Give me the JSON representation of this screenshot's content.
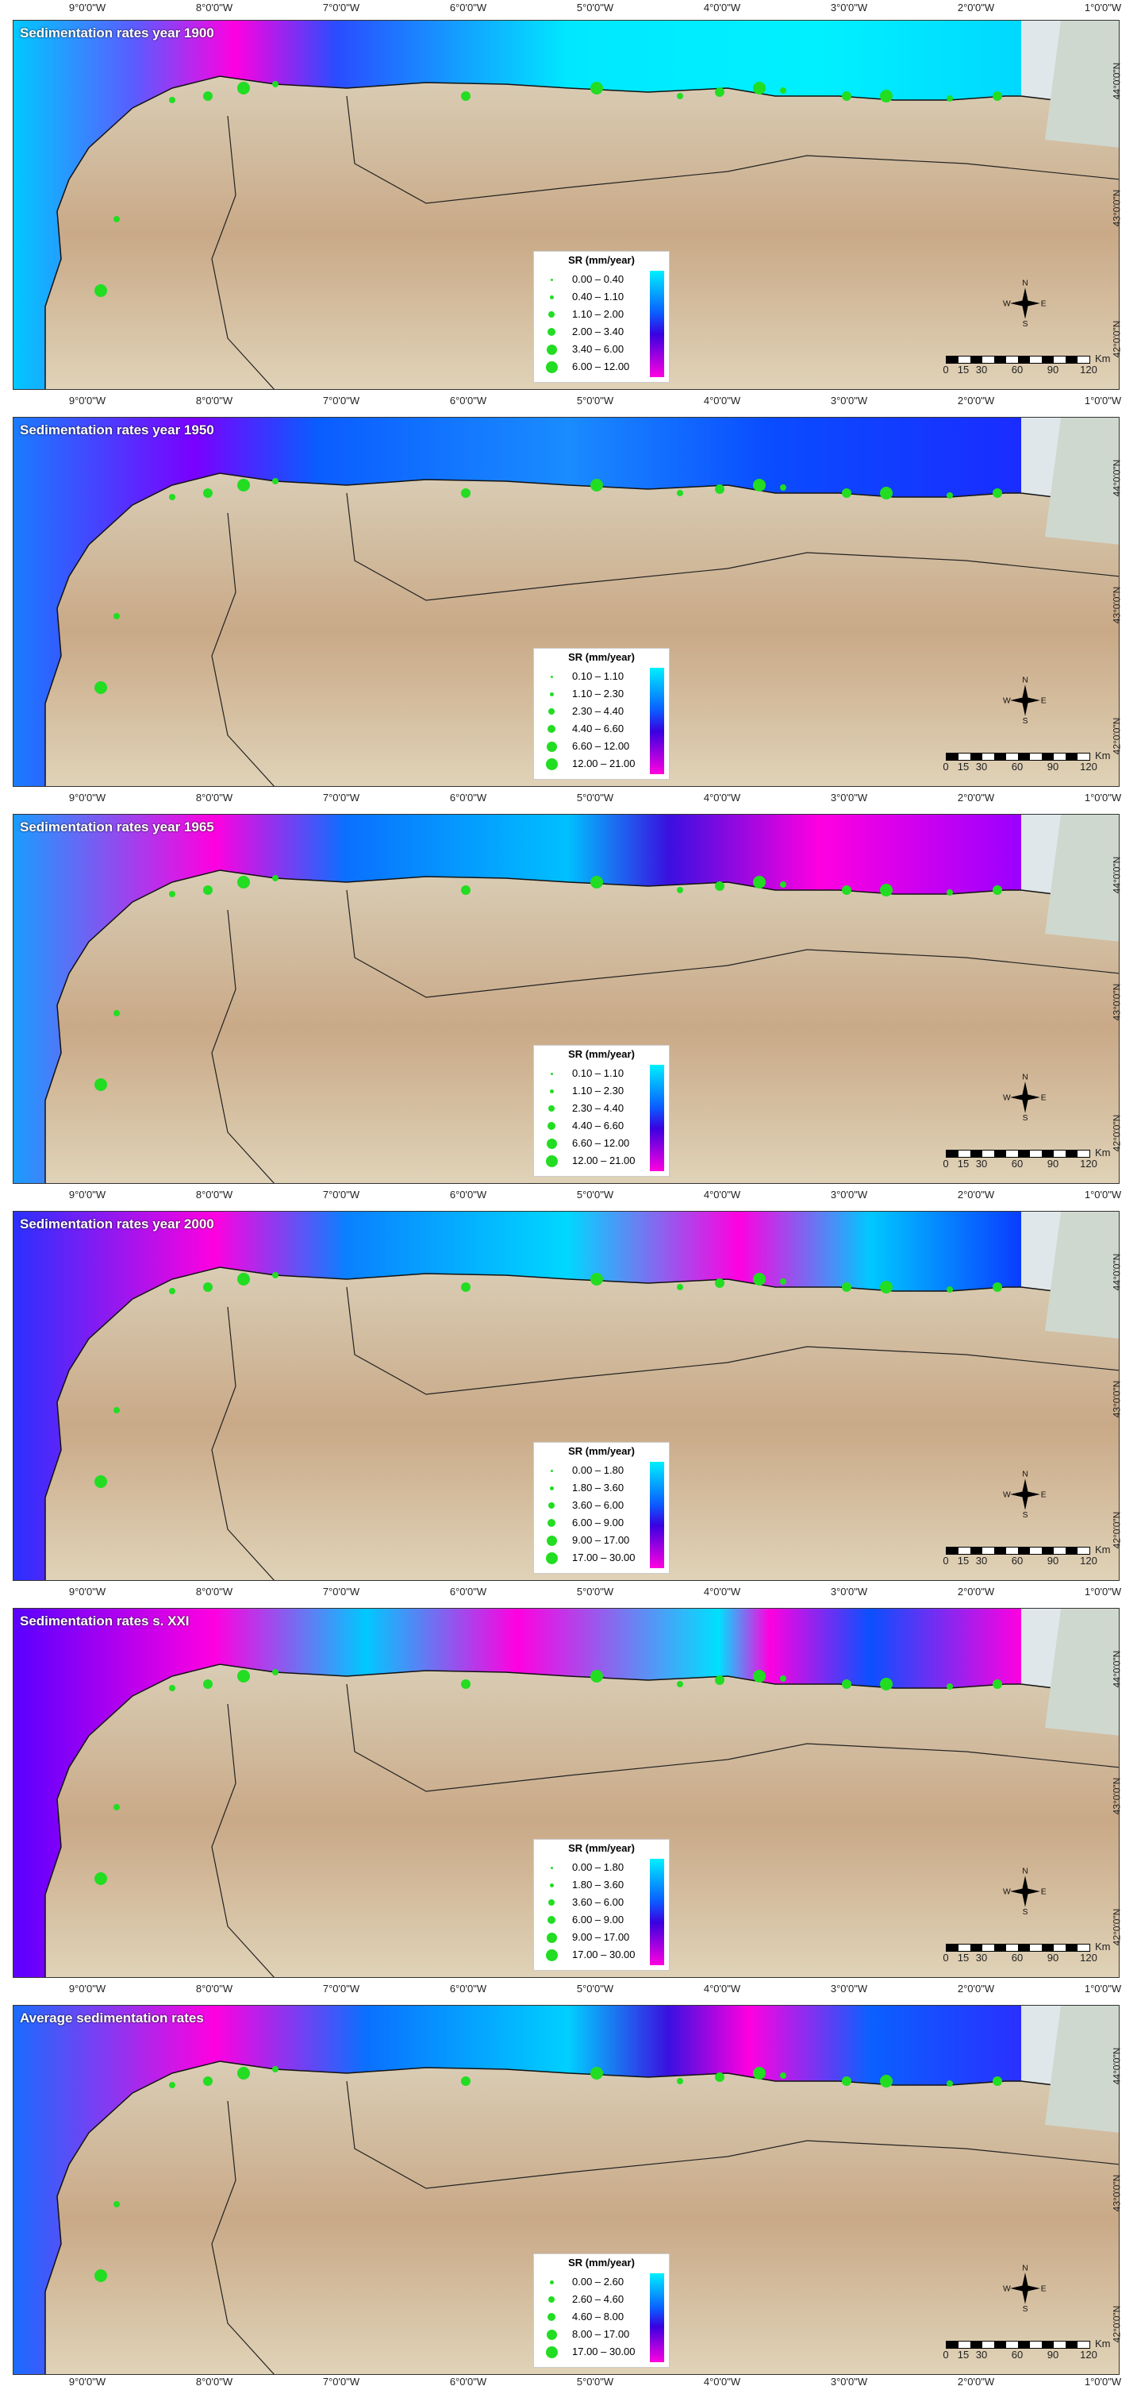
{
  "lon_ticks": [
    "9°0'0\"W",
    "8°0'0\"W",
    "7°0'0\"W",
    "6°0'0\"W",
    "5°0'0\"W",
    "4°0'0\"W",
    "3°0'0\"W",
    "2°0'0\"W",
    "1°0'0\"W"
  ],
  "lat_ticks": [
    "44°0'0\"N",
    "43°0'0\"N",
    "42°0'0\"N"
  ],
  "legend_title": "SR (mm/year)",
  "compass": {
    "n": "N",
    "s": "S",
    "e": "E",
    "w": "W"
  },
  "scale": {
    "labels": [
      "0",
      "15",
      "30",
      "60",
      "90",
      "120"
    ],
    "unit": "Km"
  },
  "colors": {
    "low": "#00f0ff",
    "mid": "#0a5cff",
    "high": "#3a00e0",
    "max": "#ff00e0",
    "dot": "#22dd22"
  },
  "panels": [
    {
      "title": "Sedimentation rates year 1900",
      "legend": [
        "0.00 – 0.40",
        "0.40 – 1.10",
        "1.10 – 2.00",
        "2.00 – 3.40",
        "3.40 – 6.00",
        "6.00 – 12.00"
      ]
    },
    {
      "title": "Sedimentation rates year 1950",
      "legend": [
        "0.10 – 1.10",
        "1.10 – 2.30",
        "2.30 – 4.40",
        "4.40 – 6.60",
        "6.60 – 12.00",
        "12.00 – 21.00"
      ]
    },
    {
      "title": "Sedimentation rates year 1965",
      "legend": [
        "0.10 – 1.10",
        "1.10 – 2.30",
        "2.30 – 4.40",
        "4.40 – 6.60",
        "6.60 – 12.00",
        "12.00 – 21.00"
      ]
    },
    {
      "title": "Sedimentation rates year 2000",
      "legend": [
        "0.00 – 1.80",
        "1.80 – 3.60",
        "3.60 – 6.00",
        "6.00 – 9.00",
        "9.00 – 17.00",
        "17.00 – 30.00"
      ]
    },
    {
      "title": "Sedimentation rates s. XXI",
      "legend": [
        "0.00 – 1.80",
        "1.80 – 3.60",
        "3.60 – 6.00",
        "6.00 – 9.00",
        "9.00 – 17.00",
        "17.00 – 30.00"
      ]
    },
    {
      "title": "Average sedimentation rates",
      "legend": [
        "0.00 – 2.60",
        "2.60 – 4.60",
        "4.60 – 8.00",
        "8.00 – 17.00",
        "17.00 – 30.00"
      ]
    }
  ]
}
